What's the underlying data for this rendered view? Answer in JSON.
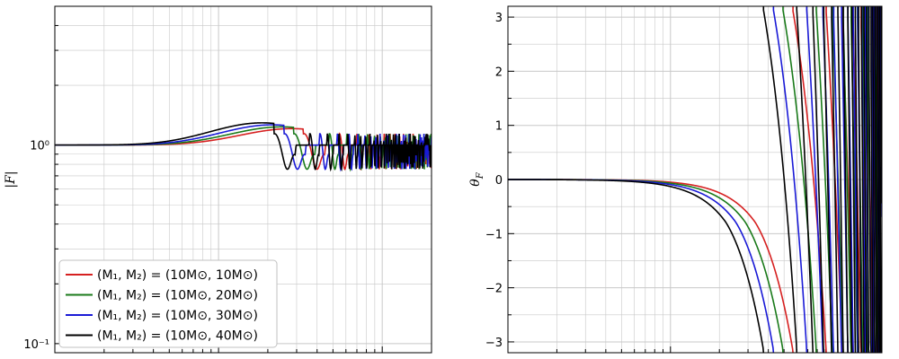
{
  "chart_data": [
    {
      "type": "line",
      "xscale": "log",
      "yscale": "log",
      "xlim": [
        0.01,
        2
      ],
      "ylim": [
        0.09,
        5
      ],
      "ylabel": "|F|",
      "yticks": [
        {
          "value": 0.1,
          "label": "10⁻¹"
        },
        {
          "value": 1,
          "label": "10⁰"
        }
      ],
      "grid": true,
      "legend": "lower-left",
      "series": [
        {
          "name": "(M₁, M₂) = (10M⊙, 10M⊙)",
          "color": "#d62020"
        },
        {
          "name": "(M₁, M₂) = (10M⊙, 20M⊙)",
          "color": "#1a7a1a"
        },
        {
          "name": "(M₁, M₂) = (10M⊙, 30M⊙)",
          "color": "#1a1ad6"
        },
        {
          "name": "(M₁, M₂) = (10M⊙, 40M⊙)",
          "color": "#000000"
        }
      ]
    },
    {
      "type": "line",
      "xscale": "log",
      "xlim": [
        0.01,
        2
      ],
      "ylim": [
        -3.2,
        3.2
      ],
      "ylabel": "θF",
      "ylabel_main": "θ",
      "ylabel_sub": "F",
      "yticks": [
        {
          "value": 3,
          "label": "3"
        },
        {
          "value": 2,
          "label": "2"
        },
        {
          "value": 1,
          "label": "1"
        },
        {
          "value": 0,
          "label": "0"
        },
        {
          "value": -1,
          "label": "−1"
        },
        {
          "value": -2,
          "label": "−2"
        },
        {
          "value": -3,
          "label": "−3"
        }
      ],
      "grid": true,
      "series": [
        {
          "name": "(M₁, M₂) = (10M⊙, 10M⊙)",
          "color": "#d62020"
        },
        {
          "name": "(M₁, M₂) = (10M⊙, 20M⊙)",
          "color": "#1a7a1a"
        },
        {
          "name": "(M₁, M₂) = (10M⊙, 30M⊙)",
          "color": "#1a1ad6"
        },
        {
          "name": "(M₁, M₂) = (10M⊙, 40M⊙)",
          "color": "#000000"
        }
      ]
    }
  ]
}
